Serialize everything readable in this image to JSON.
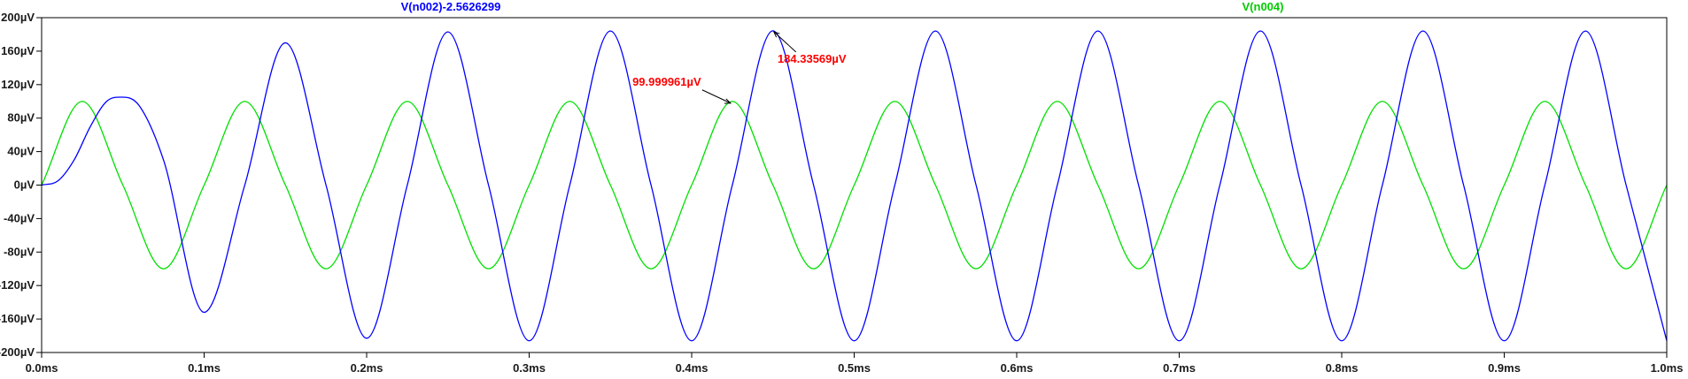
{
  "chart_data": {
    "type": "line",
    "title": "",
    "xlabel": "",
    "ylabel": "",
    "xlim": [
      0.0,
      1.0
    ],
    "ylim": [
      -200,
      200
    ],
    "grid": false,
    "legend": "top",
    "x_ticks": [
      0.0,
      0.1,
      0.2,
      0.3,
      0.4,
      0.5,
      0.6,
      0.7,
      0.8,
      0.9,
      1.0
    ],
    "x_tick_labels": [
      "0.0ms",
      "0.1ms",
      "0.2ms",
      "0.3ms",
      "0.4ms",
      "0.5ms",
      "0.6ms",
      "0.7ms",
      "0.8ms",
      "0.9ms",
      "1.0ms"
    ],
    "y_ticks": [
      200,
      160,
      120,
      80,
      40,
      0,
      -40,
      -80,
      -120,
      -160,
      -200
    ],
    "y_tick_labels": [
      "200µV",
      "160µV",
      "120µV",
      "80µV",
      "40µV",
      "0µV",
      "-40µV",
      "-80µV",
      "-120µV",
      "-160µV",
      "-200µV"
    ],
    "series": [
      {
        "name": "V(n002)-2.5626299",
        "color": "#0000ff",
        "x": [
          0.0,
          0.01,
          0.02,
          0.03,
          0.04,
          0.05,
          0.06,
          0.075,
          0.1,
          0.125,
          0.15,
          0.175,
          0.2,
          0.225,
          0.25,
          0.275,
          0.3,
          0.325,
          0.35,
          0.375,
          0.4,
          0.425,
          0.45,
          0.475,
          0.5,
          0.525,
          0.55,
          0.575,
          0.6,
          0.625,
          0.65,
          0.675,
          0.7,
          0.725,
          0.75,
          0.775,
          0.8,
          0.825,
          0.85,
          0.875,
          0.9,
          0.925,
          0.95,
          0.975,
          1.0
        ],
        "values": [
          0,
          5,
          30,
          70,
          100,
          105,
          95,
          30,
          -152,
          0,
          170,
          0,
          -183,
          0,
          183,
          0,
          -186,
          0,
          184,
          0,
          -186,
          0,
          184.34,
          0,
          -186,
          0,
          184,
          0,
          -186,
          0,
          184,
          0,
          -186,
          0,
          184,
          0,
          -186,
          0,
          184,
          0,
          -186,
          0,
          184,
          0,
          -186
        ]
      },
      {
        "name": "V(n004)",
        "color": "#00e000",
        "x": [
          0.0,
          0.025,
          0.05,
          0.075,
          0.1,
          0.125,
          0.15,
          0.175,
          0.2,
          0.225,
          0.25,
          0.275,
          0.3,
          0.325,
          0.35,
          0.375,
          0.4,
          0.425,
          0.45,
          0.475,
          0.5,
          0.525,
          0.55,
          0.575,
          0.6,
          0.625,
          0.65,
          0.675,
          0.7,
          0.725,
          0.75,
          0.775,
          0.8,
          0.825,
          0.85,
          0.875,
          0.9,
          0.925,
          0.95,
          0.975,
          1.0
        ],
        "values": [
          0,
          100,
          0,
          -100,
          0,
          100,
          0,
          -100,
          0,
          100,
          0,
          -100,
          0,
          100,
          0,
          -100,
          0,
          100,
          0,
          -100,
          0,
          100,
          0,
          -100,
          0,
          100,
          0,
          -100,
          0,
          100,
          0,
          -100,
          0,
          100,
          0,
          -100,
          0,
          100,
          0,
          -100,
          0
        ]
      }
    ],
    "annotations": [
      {
        "text": "99.999961µV",
        "x": 0.425,
        "y": 100,
        "color": "#ff0000"
      },
      {
        "text": "184.33569µV",
        "x": 0.45,
        "y": 184.34,
        "color": "#ff0000"
      }
    ]
  }
}
